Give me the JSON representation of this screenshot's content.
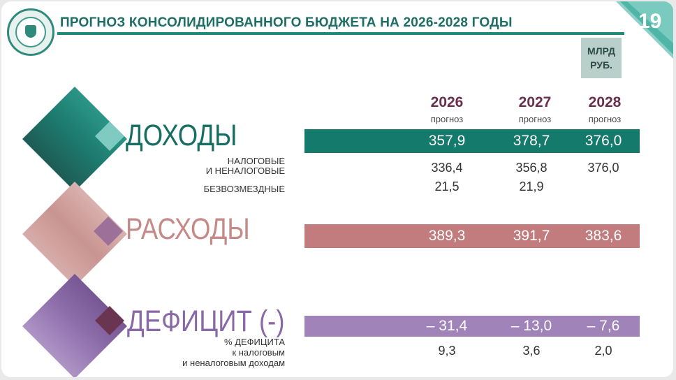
{
  "header": {
    "title": "ПРОГНОЗ  КОНСОЛИДИРОВАННОГО БЮДЖЕТА  НА 2026-2028 ГОДЫ",
    "page_number": "19",
    "units": [
      "МЛРД",
      "РУБ."
    ]
  },
  "columns": [
    {
      "year": "2026",
      "sub": "прогноз"
    },
    {
      "year": "2027",
      "sub": "прогноз"
    },
    {
      "year": "2028",
      "sub": "прогноз"
    }
  ],
  "income": {
    "label": "ДОХОДЫ",
    "totals": [
      "357,9",
      "378,7",
      "376,0"
    ],
    "tax_label": [
      "НАЛОГОВЫЕ",
      "И НЕНАЛОГОВЫЕ"
    ],
    "tax_values": [
      "336,4",
      "356,8",
      "376,0"
    ],
    "grants_label": "БЕЗВОЗМЕЗДНЫЕ",
    "grants_values": [
      "21,5",
      "21,9"
    ]
  },
  "expenses": {
    "label": "РАСХОДЫ",
    "totals": [
      "389,3",
      "391,7",
      "383,6"
    ]
  },
  "deficit": {
    "label": "ДЕФИЦИТ (-)",
    "totals": [
      "– 31,4",
      "– 13,0",
      "– 7,6"
    ],
    "pct_label": [
      "% ДЕФИЦИТА",
      "к налоговым",
      "и неналоговым доходам"
    ],
    "pct_values": [
      "9,3",
      "3,6",
      "2,0"
    ]
  },
  "colors": {
    "income": "#137a6c",
    "expenses": "#c27c7e",
    "deficit": "#a083b8",
    "title": "#1d6e64",
    "year": "#6a2f4d"
  }
}
